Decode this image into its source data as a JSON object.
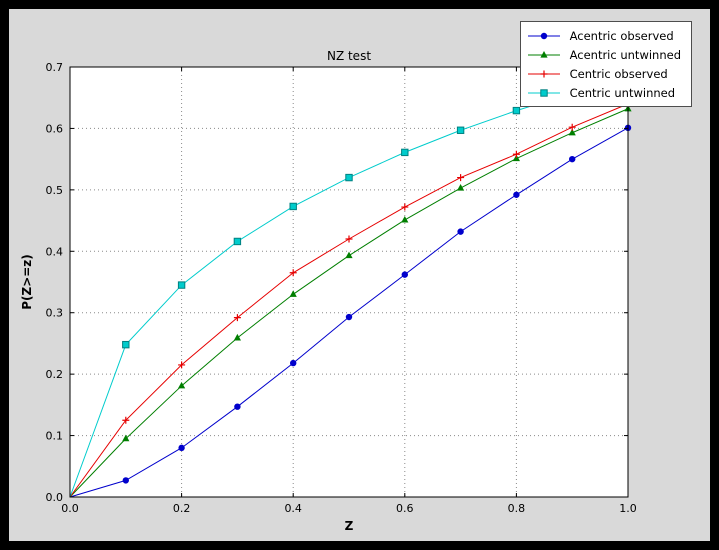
{
  "window": {
    "outer_bg": "#000000",
    "figure_bg": "#d9d9d9",
    "axes_bg": "#ffffff",
    "grid_color": "#8a8a8a"
  },
  "chart_data": {
    "type": "line",
    "title": "NZ test",
    "xlabel": "Z",
    "ylabel": "P(Z>=z)",
    "xlim": [
      0.0,
      1.0
    ],
    "ylim": [
      0.0,
      0.7
    ],
    "xticks": [
      "0.0",
      "0.2",
      "0.4",
      "0.6",
      "0.8",
      "1.0"
    ],
    "yticks": [
      "0.0",
      "0.1",
      "0.2",
      "0.3",
      "0.4",
      "0.5",
      "0.6",
      "0.7"
    ],
    "grid": true,
    "legend_position": "upper right",
    "x": [
      0.0,
      0.1,
      0.2,
      0.3,
      0.4,
      0.5,
      0.6,
      0.7,
      0.8,
      0.9,
      1.0
    ],
    "series": [
      {
        "name": "Acentric observed",
        "color": "#0000cc",
        "marker": "circle",
        "values": [
          0.0,
          0.027,
          0.08,
          0.147,
          0.218,
          0.293,
          0.362,
          0.432,
          0.492,
          0.55,
          0.601
        ]
      },
      {
        "name": "Acentric untwinned",
        "color": "#007f00",
        "marker": "triangle",
        "values": [
          0.0,
          0.095,
          0.181,
          0.259,
          0.33,
          0.393,
          0.451,
          0.503,
          0.551,
          0.593,
          0.632
        ]
      },
      {
        "name": "Centric observed",
        "color": "#e60000",
        "marker": "plus",
        "values": [
          0.0,
          0.125,
          0.215,
          0.292,
          0.365,
          0.42,
          0.472,
          0.52,
          0.558,
          0.602,
          0.64
        ]
      },
      {
        "name": "Centric untwinned",
        "color": "#00cccc",
        "marker": "square",
        "marker_edge": "#008080",
        "values": [
          0.0,
          0.248,
          0.345,
          0.416,
          0.473,
          0.52,
          0.561,
          0.597,
          0.629,
          0.657,
          0.683
        ]
      }
    ]
  }
}
